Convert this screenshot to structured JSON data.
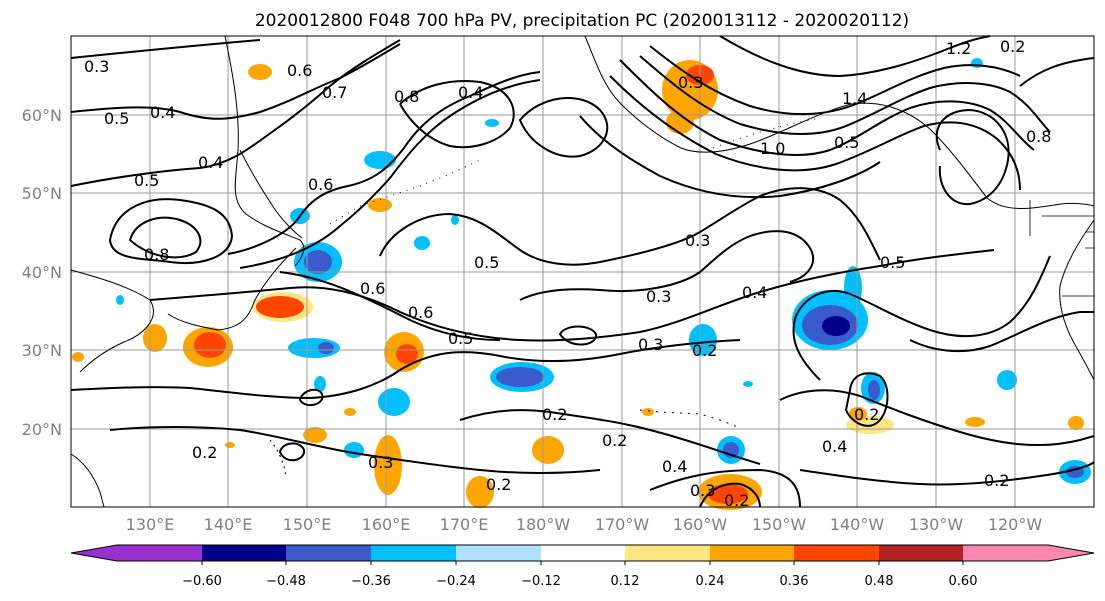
{
  "title": "2020012800 F048 700 hPa PV, precipitation PC (2020013112 - 2020020112)",
  "map": {
    "lat_labels": [
      "60°N",
      "50°N",
      "40°N",
      "30°N",
      "20°N"
    ],
    "lon_labels": [
      "130°E",
      "140°E",
      "150°E",
      "160°E",
      "170°E",
      "180°W",
      "170°W",
      "160°W",
      "150°W",
      "140°W",
      "130°W",
      "120°W"
    ],
    "gridlines": true
  },
  "colorbar": {
    "ticks": [
      "−0.60",
      "−0.48",
      "−0.36",
      "−0.24",
      "−0.12",
      "0.12",
      "0.24",
      "0.36",
      "0.48",
      "0.60"
    ],
    "colors": [
      "#9b30d0",
      "#00008b",
      "#3a5bcb",
      "#00bfff",
      "#b0e2ff",
      "#ffffff",
      "#ffe680",
      "#ffa500",
      "#ff4500",
      "#b22222",
      "#ff88b0"
    ],
    "extend": "both"
  },
  "contour_labels": [
    "0.3",
    "0.5",
    "0.4",
    "0.5",
    "0.4",
    "0.6",
    "0.7",
    "0.8",
    "0.6",
    "0.4",
    "0.8",
    "0.5",
    "0.3",
    "0.6",
    "0.6",
    "0.5",
    "0.3",
    "0.4",
    "0.5",
    "0.3",
    "0.2",
    "0.2",
    "0.3",
    "0.2",
    "0.2",
    "0.4",
    "0.4",
    "0.2",
    "0.2",
    "0.3",
    "0.2",
    "1.0",
    "1.4",
    "0.5",
    "0.3",
    "0.8",
    "1.2",
    "0.2",
    "0.2"
  ]
}
